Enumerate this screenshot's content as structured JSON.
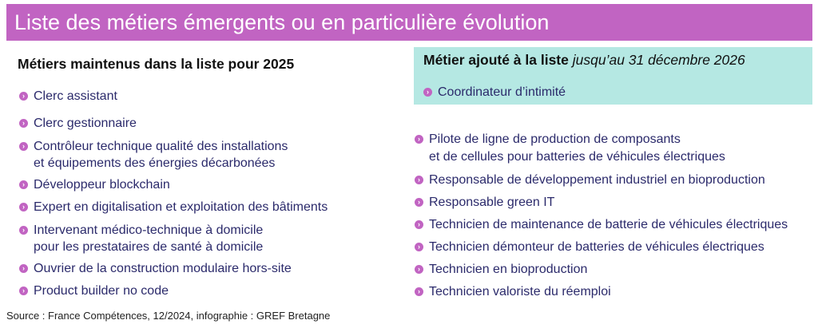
{
  "title": "Liste des métiers émergents ou en particulière évolution",
  "left_section": {
    "heading": "Métiers maintenus dans la liste pour 2025",
    "items": [
      {
        "line1": "Clerc assistant",
        "line2": ""
      },
      {
        "line1": "Clerc gestionnaire",
        "line2": ""
      },
      {
        "line1": "Contrôleur technique qualité des installations",
        "line2": "et équipements des énergies décarbonées"
      },
      {
        "line1": "Développeur blockchain",
        "line2": ""
      },
      {
        "line1": "Expert en digitalisation et exploitation des bâtiments",
        "line2": ""
      },
      {
        "line1": "Intervenant médico-technique à domicile",
        "line2": "pour les prestataires de santé à domicile"
      },
      {
        "line1": "Ouvrier de la construction modulaire hors-site",
        "line2": ""
      },
      {
        "line1": "Product builder no code",
        "line2": ""
      }
    ]
  },
  "added_section": {
    "heading_bold": "Métier ajouté à la liste",
    "heading_italic": "jusqu’au 31 décembre 2026",
    "items": [
      {
        "line1": "Coordinateur d’intimité",
        "line2": ""
      }
    ]
  },
  "right_items": [
    {
      "line1": "Pilote de ligne de production de composants",
      "line2": "et de cellules pour batteries de véhicules électriques"
    },
    {
      "line1": "Responsable de développement industriel en bioproduction",
      "line2": ""
    },
    {
      "line1": "Responsable green IT",
      "line2": ""
    },
    {
      "line1": "Technicien de maintenance de batterie de véhicules électriques",
      "line2": ""
    },
    {
      "line1": "Technicien démonteur de batteries de véhicules électriques",
      "line2": ""
    },
    {
      "line1": " Technicien en bioproduction",
      "line2": ""
    },
    {
      "line1": "Technicien valoriste du réemploi",
      "line2": ""
    }
  ],
  "source": "Source : France Compétences, 12/2024, infographie : GREF Bretagne",
  "colors": {
    "accent": "#c164c2",
    "highlight_box": "#b5e8e3",
    "text": "#2b2a6b"
  },
  "bullet_icon": "chevron-right-icon"
}
